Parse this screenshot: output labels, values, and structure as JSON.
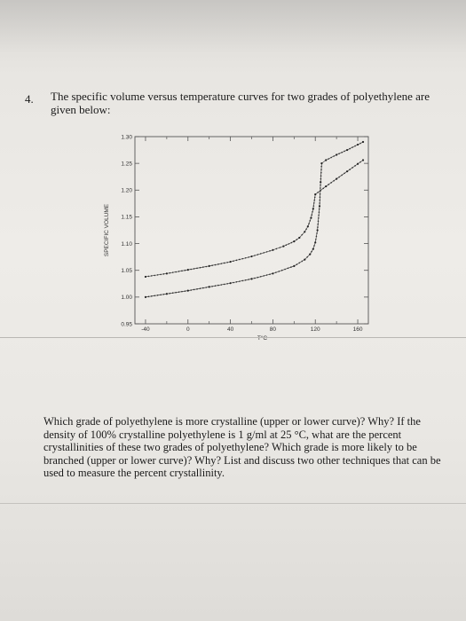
{
  "problem": {
    "number": "4.",
    "intro": "The specific volume versus temperature curves for two grades of polyethylene are given below:",
    "question": "Which grade of polyethylene is more crystalline (upper or lower curve)? Why? If the density of 100% crystalline polyethylene is 1 g/ml at 25 °C, what are the percent crystallinities of these two grades of polyethylene? Which grade is more likely to be branched (upper or lower curve)? Why? List and discuss two other techniques that can be used to measure the percent crystallinity."
  },
  "chart_data": {
    "type": "line",
    "xlabel": "T°C",
    "ylabel": "SPECIFIC VOLUME",
    "xlim": [
      -50,
      170
    ],
    "ylim": [
      0.95,
      1.3
    ],
    "x_ticks": [
      "-40",
      "0",
      "40",
      "80",
      "120",
      "160"
    ],
    "y_ticks": [
      "0.95",
      "1.00",
      "1.05",
      "1.10",
      "1.15",
      "1.20",
      "1.25",
      "1.30"
    ],
    "grid": false,
    "series": [
      {
        "x": [
          -40,
          -20,
          0,
          20,
          40,
          60,
          80,
          90,
          100,
          105,
          110,
          113,
          116,
          118,
          120,
          130,
          140,
          150,
          160,
          165
        ],
        "y": [
          1.038,
          1.044,
          1.051,
          1.058,
          1.066,
          1.076,
          1.088,
          1.095,
          1.104,
          1.111,
          1.122,
          1.132,
          1.148,
          1.165,
          1.192,
          1.207,
          1.221,
          1.235,
          1.249,
          1.256
        ]
      },
      {
        "x": [
          -40,
          -20,
          0,
          20,
          40,
          60,
          80,
          100,
          110,
          115,
          118,
          120,
          122,
          124,
          125,
          126,
          130,
          140,
          150,
          160,
          165
        ],
        "y": [
          1.0,
          1.006,
          1.012,
          1.019,
          1.026,
          1.034,
          1.044,
          1.058,
          1.07,
          1.08,
          1.09,
          1.102,
          1.125,
          1.17,
          1.215,
          1.25,
          1.256,
          1.266,
          1.275,
          1.285,
          1.29
        ]
      }
    ]
  }
}
